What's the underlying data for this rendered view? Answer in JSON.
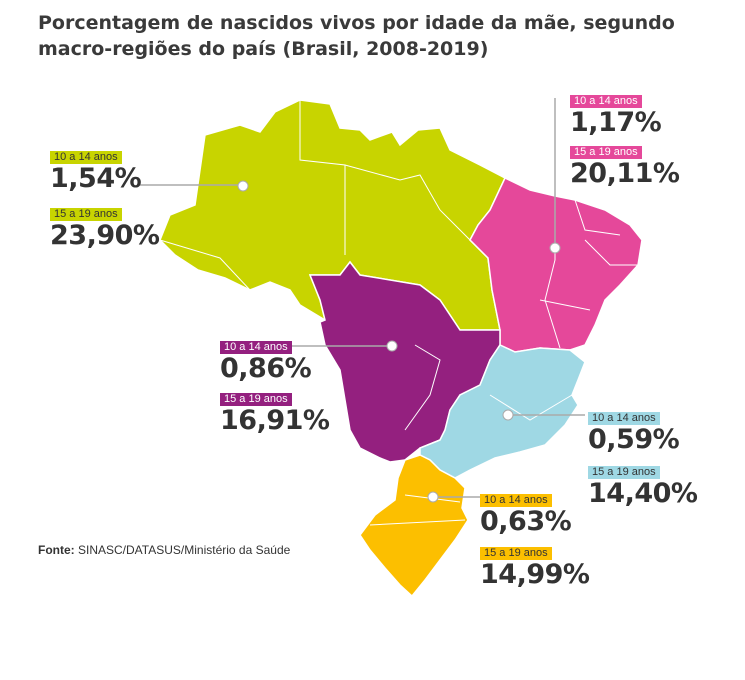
{
  "title": "Porcentagem de nascidos vivos por idade da mãe, segundo macro-regiões do país (Brasil, 2008-2019)",
  "source": {
    "label": "Fonte:",
    "text": "SINASC/DATASUS/Ministério da Saúde"
  },
  "colors": {
    "norte": "#c8d400",
    "nordeste": "#e5489a",
    "centro_oeste": "#94207f",
    "sudeste": "#9fd8e4",
    "sul": "#fcbf00"
  },
  "regions": [
    {
      "key": "norte",
      "age_10_14_label": "10 a 14 anos",
      "age_10_14_value": "1,54%",
      "age_15_19_label": "15 a 19 anos",
      "age_15_19_value": "23,90%"
    },
    {
      "key": "nordeste",
      "age_10_14_label": "10 a 14 anos",
      "age_10_14_value": "1,17%",
      "age_15_19_label": "15 a 19 anos",
      "age_15_19_value": "20,11%"
    },
    {
      "key": "centro_oeste",
      "age_10_14_label": "10 a 14 anos",
      "age_10_14_value": "0,86%",
      "age_15_19_label": "15 a 19 anos",
      "age_15_19_value": "16,91%"
    },
    {
      "key": "sudeste",
      "age_10_14_label": "10 a 14 anos",
      "age_10_14_value": "0,59%",
      "age_15_19_label": "15 a 19 anos",
      "age_15_19_value": "14,40%"
    },
    {
      "key": "sul",
      "age_10_14_label": "10 a 14 anos",
      "age_10_14_value": "0,63%",
      "age_15_19_label": "15 a 19 anos",
      "age_15_19_value": "14,99%"
    }
  ]
}
